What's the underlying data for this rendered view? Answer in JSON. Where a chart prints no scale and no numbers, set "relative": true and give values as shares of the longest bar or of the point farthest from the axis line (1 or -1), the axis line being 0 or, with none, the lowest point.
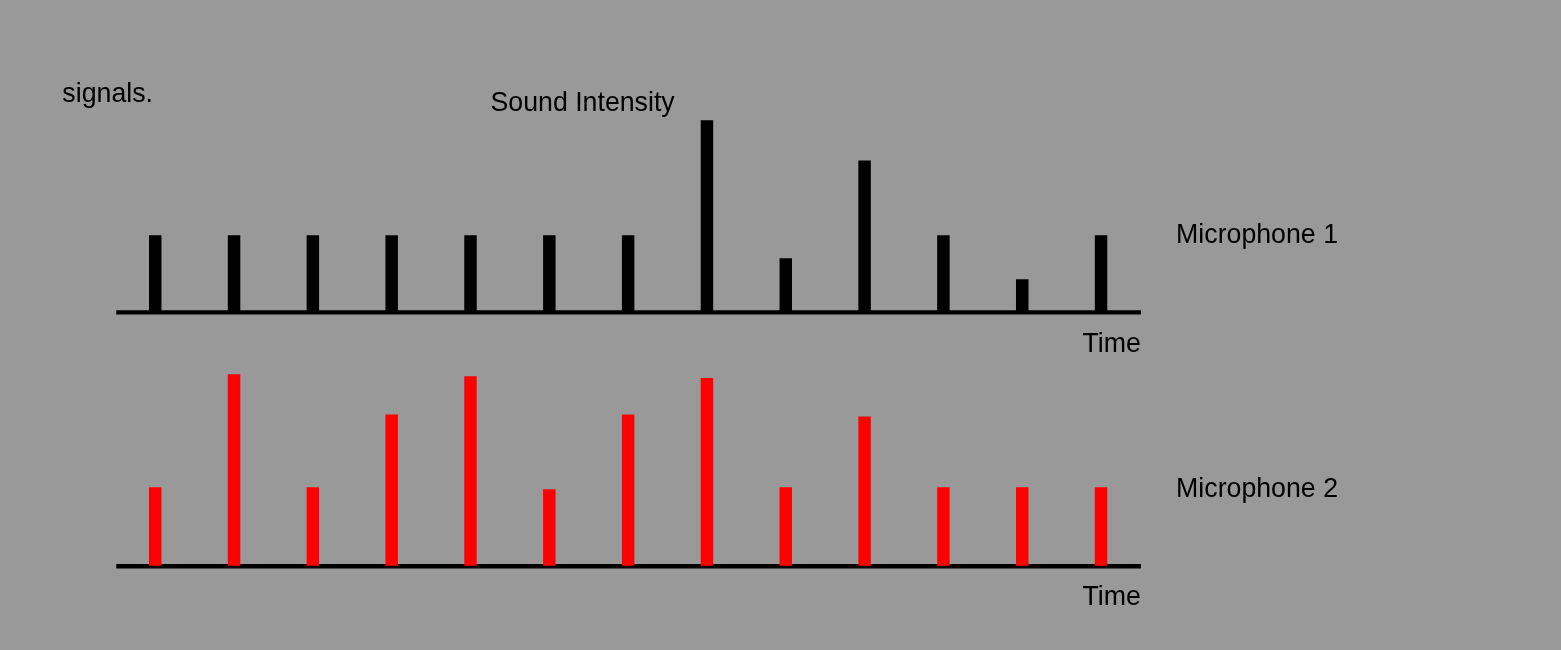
{
  "chart_data": [
    {
      "type": "bar",
      "relative": true,
      "ylabel": "Sound Intensity",
      "xlabel": "Time",
      "annotations": [
        "signals."
      ],
      "categories": [
        null,
        null,
        null,
        null,
        null,
        null,
        null,
        null,
        null,
        null,
        null,
        null,
        null
      ],
      "grid": false,
      "tick_labels": false,
      "series": [
        {
          "name": "Microphone 1",
          "color": "#000000",
          "values": [
            0.4,
            0.4,
            0.4,
            0.4,
            0.4,
            0.4,
            0.4,
            1,
            0.28,
            0.79,
            0.4,
            0.17,
            0.4
          ]
        }
      ]
    },
    {
      "type": "bar",
      "relative": true,
      "xlabel": "Time",
      "categories": [
        null,
        null,
        null,
        null,
        null,
        null,
        null,
        null,
        null,
        null,
        null,
        null,
        null
      ],
      "grid": false,
      "tick_labels": false,
      "series": [
        {
          "name": "Microphone 2",
          "color": "#ff0000",
          "values": [
            0.41,
            1,
            0.41,
            0.79,
            0.99,
            0.4,
            0.79,
            0.98,
            0.41,
            0.78,
            0.41,
            0.41,
            0.41
          ]
        }
      ]
    }
  ]
}
